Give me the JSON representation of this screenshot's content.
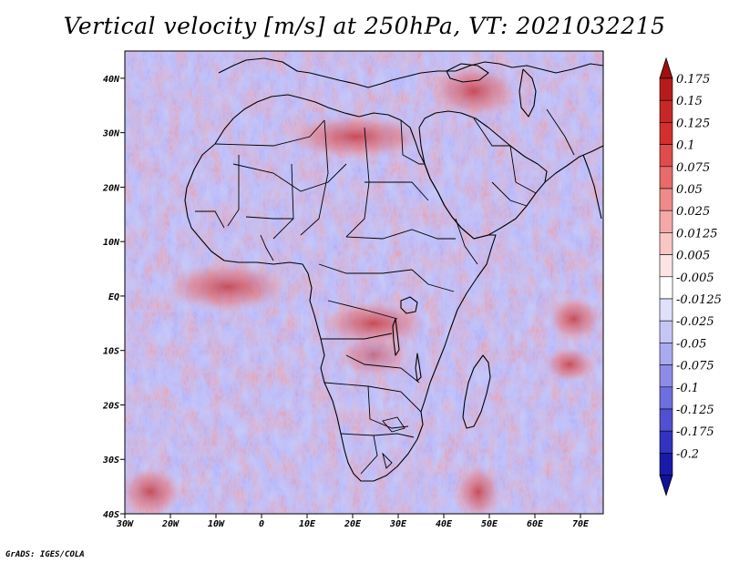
{
  "title": "Vertical velocity [m/s] at 250hPa, VT: 2021032215",
  "credit": "GrADS: IGES/COLA",
  "map": {
    "lon_range": [
      -30,
      75
    ],
    "lat_range": [
      -40,
      45
    ],
    "lat_ticks": [
      {
        "value": 40,
        "label": "40N"
      },
      {
        "value": 30,
        "label": "30N"
      },
      {
        "value": 20,
        "label": "20N"
      },
      {
        "value": 10,
        "label": "10N"
      },
      {
        "value": 0,
        "label": "EQ"
      },
      {
        "value": -10,
        "label": "10S"
      },
      {
        "value": -20,
        "label": "20S"
      },
      {
        "value": -30,
        "label": "30S"
      },
      {
        "value": -40,
        "label": "40S"
      }
    ],
    "lon_ticks": [
      {
        "value": -30,
        "label": "30W"
      },
      {
        "value": -20,
        "label": "20W"
      },
      {
        "value": -10,
        "label": "10W"
      },
      {
        "value": 0,
        "label": "0"
      },
      {
        "value": 10,
        "label": "10E"
      },
      {
        "value": 20,
        "label": "20E"
      },
      {
        "value": 30,
        "label": "30E"
      },
      {
        "value": 40,
        "label": "40E"
      },
      {
        "value": 50,
        "label": "50E"
      },
      {
        "value": 60,
        "label": "60E"
      },
      {
        "value": 70,
        "label": "70E"
      }
    ]
  },
  "colorbar": {
    "entries": [
      {
        "label": "0.175",
        "color": "#b71c1c"
      },
      {
        "label": "0.15",
        "color": "#c62828"
      },
      {
        "label": "0.125",
        "color": "#d32f2f"
      },
      {
        "label": "0.1",
        "color": "#e04b4b"
      },
      {
        "label": "0.075",
        "color": "#e86a6a"
      },
      {
        "label": "0.05",
        "color": "#f08a8a"
      },
      {
        "label": "0.025",
        "color": "#f5a8a8"
      },
      {
        "label": "0.0125",
        "color": "#f9c6c6"
      },
      {
        "label": "0.005",
        "color": "#fde4e4"
      },
      {
        "label": "-0.005",
        "color": "#ffffff"
      },
      {
        "label": "-0.0125",
        "color": "#e0e0fb"
      },
      {
        "label": "-0.025",
        "color": "#c6c6f6"
      },
      {
        "label": "-0.05",
        "color": "#aaaaf0"
      },
      {
        "label": "-0.075",
        "color": "#8c8ce8"
      },
      {
        "label": "-0.1",
        "color": "#6e6ede"
      },
      {
        "label": "-0.125",
        "color": "#5050d0"
      },
      {
        "label": "-0.175",
        "color": "#3333c0"
      },
      {
        "label": "-0.2",
        "color": "#1a1aa8"
      }
    ],
    "upper_arrow_color": "#a01010",
    "lower_arrow_color": "#10109a"
  }
}
